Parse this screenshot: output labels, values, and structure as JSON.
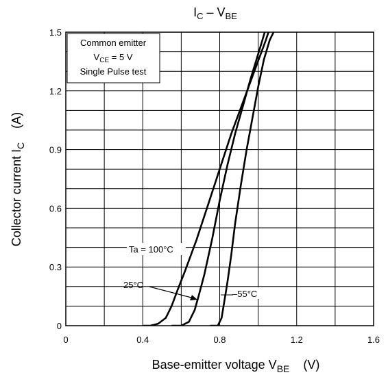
{
  "chart_data": {
    "type": "line",
    "title": {
      "main": "I",
      "sub1": "C",
      "mid": " – V",
      "sub2": "BE"
    },
    "xlabel": {
      "main": "Base-emitter voltage   V",
      "sub": "BE",
      "unit": "(V)"
    },
    "ylabel": {
      "main": "Collector current   I",
      "sub": "C",
      "unit": "(A)"
    },
    "xlim": [
      0,
      1.6
    ],
    "ylim": [
      0,
      1.5
    ],
    "x_ticks": [
      0,
      0.4,
      0.8,
      1.2,
      1.6
    ],
    "x_tick_labels": [
      "0",
      "0.4",
      "0.8",
      "1.2",
      "1.6"
    ],
    "y_ticks": [
      0,
      0.3,
      0.6,
      0.9,
      1.2,
      1.5
    ],
    "y_tick_labels": [
      "0",
      "0.3",
      "0.6",
      "0.9",
      "1.2",
      "1.5"
    ],
    "grid": true,
    "series": [
      {
        "name": "Ta = 100°C",
        "values": [
          [
            0.4,
            0.0
          ],
          [
            0.44,
            0.0
          ],
          [
            0.48,
            0.01
          ],
          [
            0.52,
            0.04
          ],
          [
            0.55,
            0.1
          ],
          [
            0.58,
            0.18
          ],
          [
            0.62,
            0.28
          ],
          [
            0.68,
            0.44
          ],
          [
            0.74,
            0.62
          ],
          [
            0.8,
            0.8
          ],
          [
            0.86,
            0.98
          ],
          [
            0.92,
            1.14
          ],
          [
            0.98,
            1.3
          ],
          [
            1.04,
            1.46
          ],
          [
            1.06,
            1.52
          ]
        ]
      },
      {
        "name": "25°C",
        "values": [
          [
            0.55,
            0.0
          ],
          [
            0.6,
            0.0
          ],
          [
            0.64,
            0.02
          ],
          [
            0.67,
            0.08
          ],
          [
            0.69,
            0.15
          ],
          [
            0.72,
            0.26
          ],
          [
            0.76,
            0.44
          ],
          [
            0.8,
            0.64
          ],
          [
            0.84,
            0.82
          ],
          [
            0.88,
            0.98
          ],
          [
            0.92,
            1.12
          ],
          [
            0.96,
            1.26
          ],
          [
            1.01,
            1.42
          ],
          [
            1.04,
            1.52
          ]
        ]
      },
      {
        "name": "-55°C",
        "values": [
          [
            0.75,
            0.0
          ],
          [
            0.79,
            0.0
          ],
          [
            0.81,
            0.04
          ],
          [
            0.82,
            0.1
          ],
          [
            0.84,
            0.22
          ],
          [
            0.86,
            0.36
          ],
          [
            0.88,
            0.52
          ],
          [
            0.91,
            0.72
          ],
          [
            0.94,
            0.9
          ],
          [
            0.97,
            1.06
          ],
          [
            1.0,
            1.22
          ],
          [
            1.03,
            1.36
          ],
          [
            1.06,
            1.46
          ],
          [
            1.09,
            1.52
          ]
        ]
      }
    ],
    "legend_box": {
      "line1": "Common emitter",
      "line2_main": "V",
      "line2_sub": "CE",
      "line2_rest": " = 5 V",
      "line3": "Single Pulse test"
    },
    "annotations": {
      "label_100": "Ta = 100°C",
      "label_25": "25°C",
      "label_m55": "–55°C"
    }
  }
}
